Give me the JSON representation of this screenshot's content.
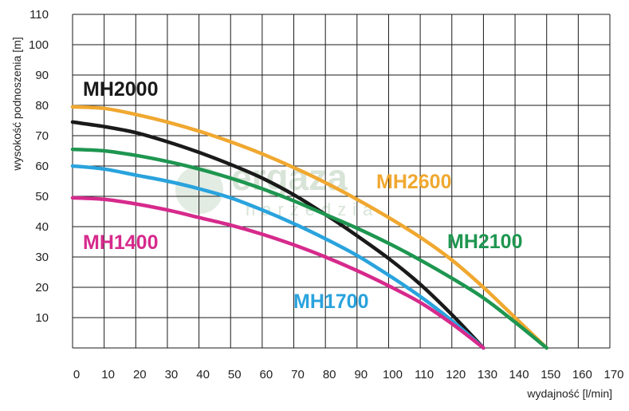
{
  "chart_data": {
    "type": "line",
    "title": "",
    "xlabel": "wydajność [l/min]",
    "ylabel": "wysokość podnoszenia [m]",
    "xlim": [
      0,
      170
    ],
    "ylim": [
      0,
      110
    ],
    "x_ticks": [
      0,
      10,
      20,
      30,
      40,
      50,
      60,
      70,
      80,
      90,
      100,
      110,
      120,
      130,
      140,
      150,
      160,
      170
    ],
    "y_ticks": [
      10,
      20,
      30,
      40,
      50,
      60,
      70,
      80,
      90,
      100,
      110
    ],
    "grid": true,
    "legend": "inline labels",
    "series": [
      {
        "name": "MH2000",
        "color": "#1a1a1a",
        "x": [
          0,
          10,
          20,
          30,
          40,
          50,
          60,
          70,
          80,
          90,
          100,
          110,
          120,
          130
        ],
        "y": [
          74.5,
          73,
          71,
          68,
          64.5,
          60.5,
          56,
          50.5,
          44,
          37,
          29.5,
          21,
          11,
          0
        ]
      },
      {
        "name": "MH2600",
        "color": "#f0a830",
        "x": [
          0,
          10,
          20,
          30,
          40,
          50,
          60,
          70,
          80,
          90,
          100,
          110,
          120,
          130,
          140,
          150
        ],
        "y": [
          79.5,
          79,
          77,
          74.5,
          71.5,
          68,
          64,
          59.5,
          54.5,
          49,
          43,
          36.5,
          29,
          20,
          10,
          0
        ]
      },
      {
        "name": "MH2100",
        "color": "#1e9650",
        "x": [
          0,
          10,
          20,
          30,
          40,
          50,
          60,
          70,
          80,
          90,
          100,
          110,
          120,
          130,
          140,
          150
        ],
        "y": [
          65.5,
          65,
          63.5,
          61.5,
          59,
          56,
          52.5,
          48.5,
          44,
          39.5,
          34.5,
          29,
          23,
          16.5,
          8.5,
          0
        ]
      },
      {
        "name": "MH1700",
        "color": "#29a3dd",
        "x": [
          0,
          10,
          20,
          30,
          40,
          50,
          60,
          70,
          80,
          90,
          100,
          110,
          120,
          130
        ],
        "y": [
          60,
          59,
          57,
          55,
          52.5,
          49.5,
          45.5,
          41,
          36,
          30.5,
          24,
          17,
          9,
          0
        ]
      },
      {
        "name": "MH1400",
        "color": "#d62a8c",
        "x": [
          0,
          10,
          20,
          30,
          40,
          50,
          60,
          70,
          80,
          90,
          100,
          110,
          120,
          130
        ],
        "y": [
          49.5,
          49,
          47.5,
          45.5,
          43,
          40.5,
          37.5,
          34,
          30,
          25.5,
          20.5,
          15,
          8,
          0
        ]
      }
    ]
  },
  "watermark": {
    "brand": "ergaza",
    "sub": "narzedzia"
  }
}
